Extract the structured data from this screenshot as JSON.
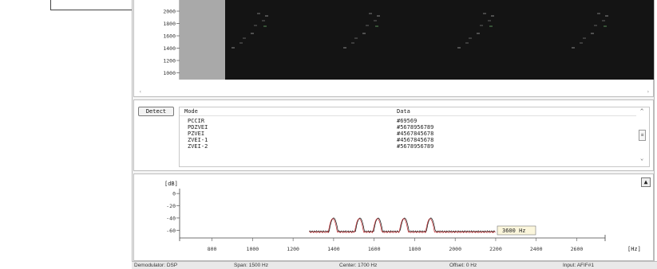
{
  "waterfall": {
    "y_ticks": [
      "2000",
      "1800",
      "1600",
      "1400",
      "1200",
      "1000"
    ],
    "scroll_left": "‹",
    "scroll_right": "›"
  },
  "decoder": {
    "detect_label": "Detect",
    "columns": {
      "mode": "Mode",
      "data": "Data"
    },
    "rows": [
      {
        "mode": "PCCIR",
        "data": "#69569"
      },
      {
        "mode": "PDZVEI",
        "data": "#5678956789"
      },
      {
        "mode": "PZVEI",
        "data": "#4567845678"
      },
      {
        "mode": "ZVEI-1",
        "data": "#4567845678"
      },
      {
        "mode": "ZVEI-2",
        "data": "#5678956789"
      }
    ],
    "scroll_up": "^",
    "scroll_thumb": "≡",
    "scroll_down": "⌄"
  },
  "spectrum": {
    "y_unit": "[dB]",
    "x_unit": "[Hz]",
    "y_ticks": [
      "0",
      "-20",
      "-40",
      "-60"
    ],
    "x_ticks": [
      "800",
      "1000",
      "1200",
      "1400",
      "1600",
      "1800",
      "2000",
      "2200",
      "2400",
      "2600"
    ],
    "marker_label": "3600 Hz",
    "toggle_label": "▲",
    "trace_colors": {
      "black": "#111111",
      "red": "#c0282c"
    }
  },
  "chart_data": {
    "type": "line",
    "xlabel": "[Hz]",
    "ylabel": "[dB]",
    "xlim": [
      640,
      2740
    ],
    "ylim": [
      -70,
      8
    ],
    "series": [
      {
        "x": [
          1400,
          1530,
          1620,
          1750,
          1880
        ],
        "values": [
          -40,
          -40,
          -40,
          -40,
          -40
        ]
      }
    ],
    "peak_widths_hz": [
      22,
      22,
      22,
      22,
      22
    ]
  },
  "statusbar": {
    "demodulator": "Demodulator: DSP",
    "span": "Span: 1500 Hz",
    "center": "Center: 1700 Hz",
    "offset": "Offset: 0 Hz",
    "input": "Input: AFIF#1"
  }
}
